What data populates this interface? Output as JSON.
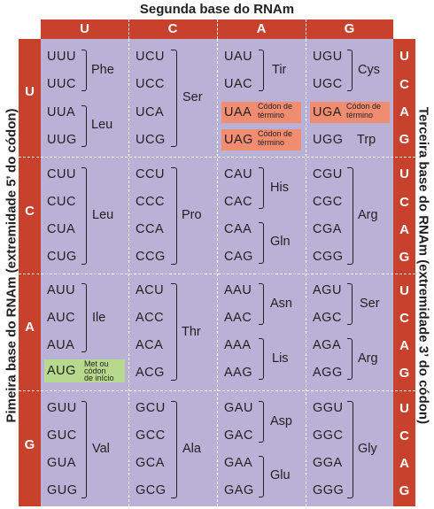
{
  "titles": {
    "top": "Segunda base do RNAm",
    "left": "Pimeira base do RNAm (extremidade 5’ do códon)",
    "right": "Terceira base do RNAm (extremidade 3’ do códon)"
  },
  "bases": [
    "U",
    "C",
    "A",
    "G"
  ],
  "colors": {
    "header": "#c8412c",
    "grid": "#b9b2d6",
    "stop": "#f08d70",
    "start": "#b7d98d"
  },
  "codons": {
    "UUU": "UUU",
    "UUC": "UUC",
    "UUA": "UUA",
    "UUG": "UUG",
    "UCU": "UCU",
    "UCC": "UCC",
    "UCA": "UCA",
    "UCG": "UCG",
    "UAU": "UAU",
    "UAC": "UAC",
    "UAA": "UAA",
    "UAG": "UAG",
    "UGU": "UGU",
    "UGC": "UGC",
    "UGA": "UGA",
    "UGG": "UGG",
    "CUU": "CUU",
    "CUC": "CUC",
    "CUA": "CUA",
    "CUG": "CUG",
    "CCU": "CCU",
    "CCC": "CCC",
    "CCA": "CCA",
    "CCG": "CCG",
    "CAU": "CAU",
    "CAC": "CAC",
    "CAA": "CAA",
    "CAG": "CAG",
    "CGU": "CGU",
    "CGC": "CGC",
    "CGA": "CGA",
    "CGG": "CGG",
    "AUU": "AUU",
    "AUC": "AUC",
    "AUA": "AUA",
    "AUG": "AUG",
    "ACU": "ACU",
    "ACC": "ACC",
    "ACA": "ACA",
    "ACG": "ACG",
    "AAU": "AAU",
    "AAC": "AAC",
    "AAA": "AAA",
    "AAG": "AAG",
    "AGU": "AGU",
    "AGC": "AGC",
    "AGA": "AGA",
    "AGG": "AGG",
    "GUU": "GUU",
    "GUC": "GUC",
    "GUA": "GUA",
    "GUG": "GUG",
    "GCU": "GCU",
    "GCC": "GCC",
    "GCA": "GCA",
    "GCG": "GCG",
    "GAU": "GAU",
    "GAC": "GAC",
    "GAA": "GAA",
    "GAG": "GAG",
    "GGU": "GGU",
    "GGC": "GGC",
    "GGA": "GGA",
    "GGG": "GGG"
  },
  "aa": {
    "phe": "Phe",
    "leu1": "Leu",
    "ser1": "Ser",
    "tir": "Tir",
    "cys": "Cys",
    "trp": "Trp",
    "leu2": "Leu",
    "pro": "Pro",
    "his": "His",
    "gln": "Gln",
    "arg1": "Arg",
    "ile": "Ile",
    "thr": "Thr",
    "asn": "Asn",
    "lis": "Lis",
    "ser2": "Ser",
    "arg2": "Arg",
    "val": "Val",
    "ala": "Ala",
    "asp": "Asp",
    "glu": "Glu",
    "gly": "Gly"
  },
  "notes": {
    "stop_l1": "Códon de",
    "stop_l2": "término",
    "start_l1": "Met ou",
    "start_l2": "códon",
    "start_l3": "de início"
  }
}
